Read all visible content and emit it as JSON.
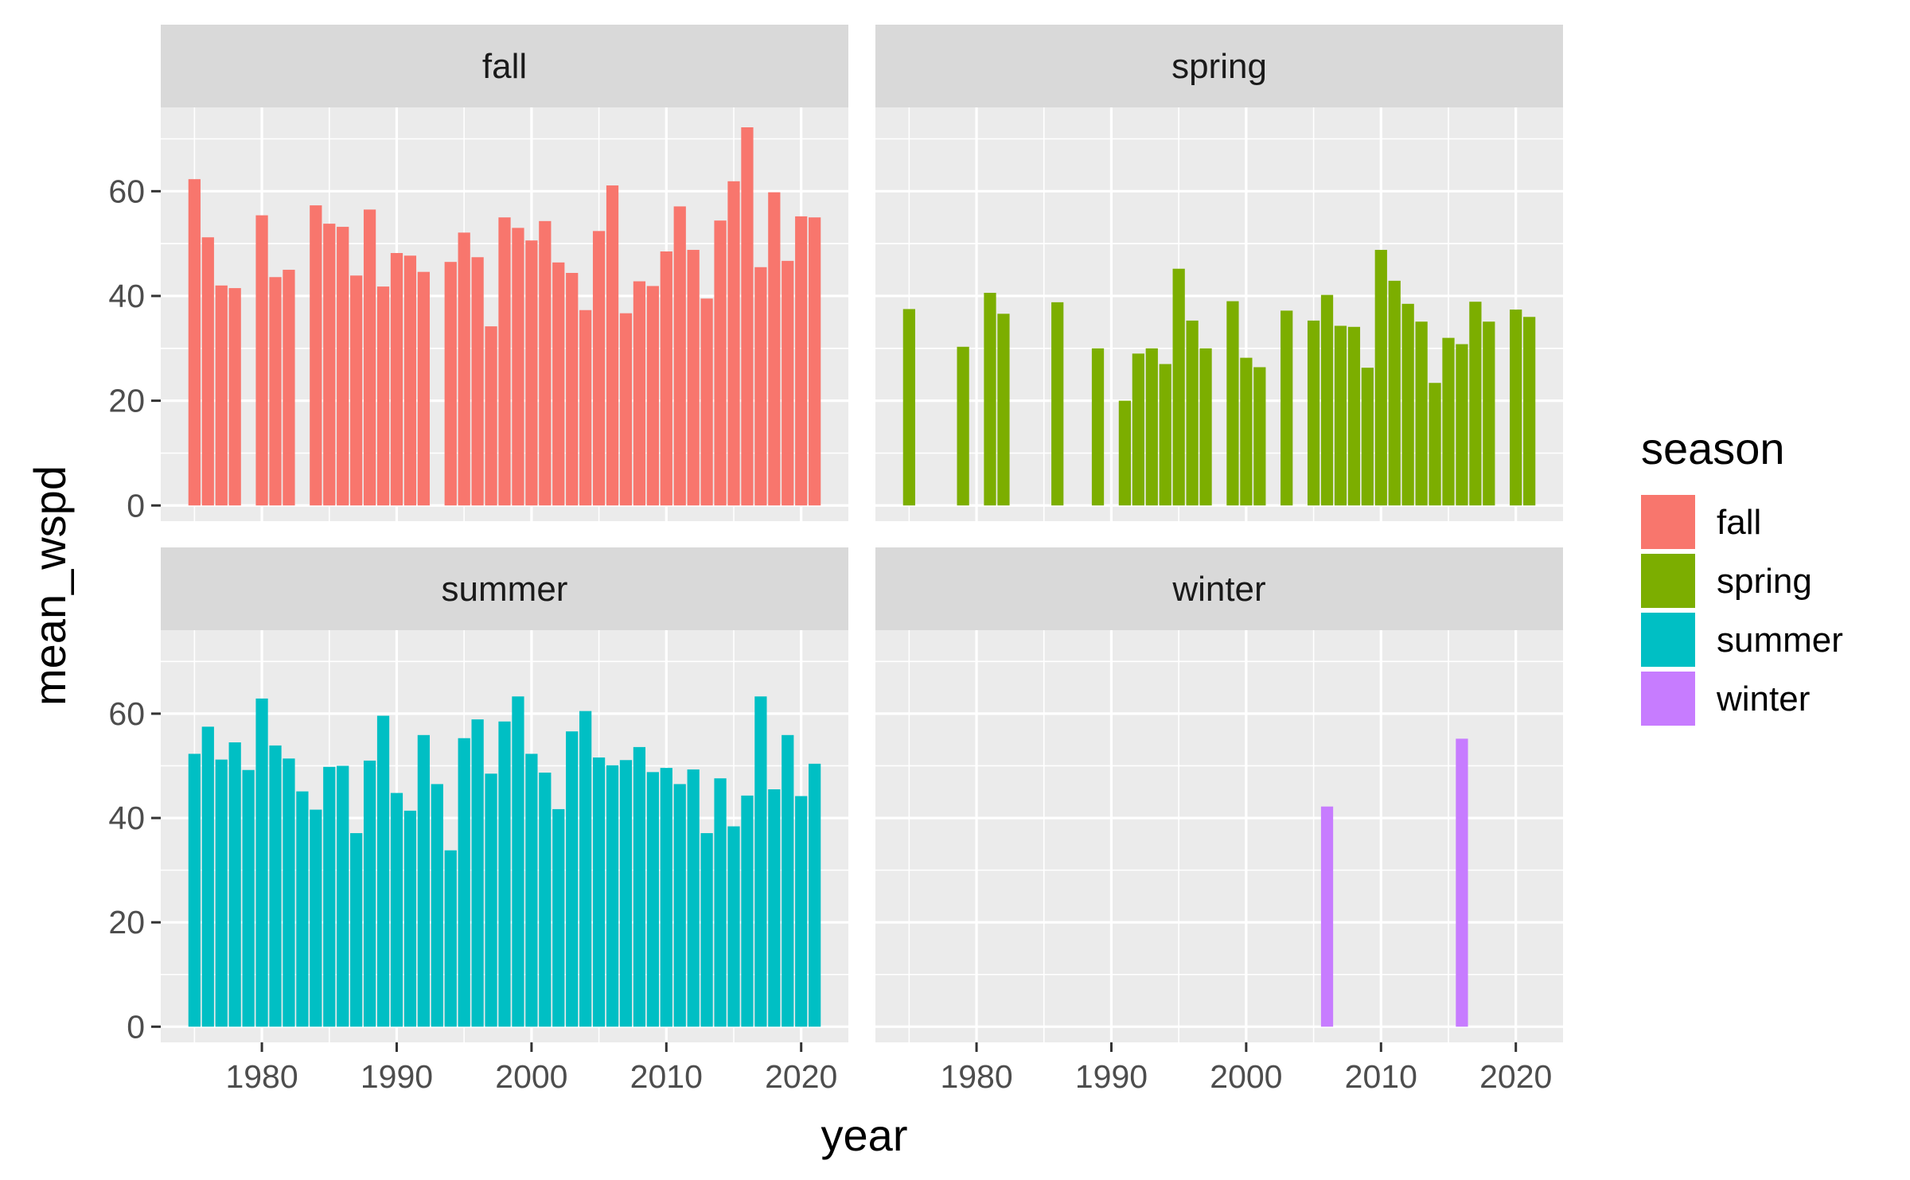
{
  "chart_data": {
    "type": "bar",
    "facet_by": "season",
    "xlabel": "year",
    "ylabel": "mean_wspd",
    "xlim": [
      1972.5,
      1998.5
    ],
    "ylim": [
      -3,
      76
    ],
    "x_ticks": [
      1980,
      1990,
      2000,
      2010,
      2020
    ],
    "y_ticks": [
      0,
      20,
      40,
      60
    ],
    "grid": true,
    "legend": {
      "title": "season",
      "position": "right",
      "entries": [
        {
          "label": "fall",
          "color": "#F8766D"
        },
        {
          "label": "spring",
          "color": "#7CAE00"
        },
        {
          "label": "summer",
          "color": "#00BFC4"
        },
        {
          "label": "winter",
          "color": "#C77CFF"
        }
      ]
    },
    "panels": [
      {
        "label": "fall",
        "color": "#F8766D",
        "points": [
          {
            "year": 1975,
            "value": 62.3
          },
          {
            "year": 1976,
            "value": 51.2
          },
          {
            "year": 1977,
            "value": 42.0
          },
          {
            "year": 1978,
            "value": 41.5
          },
          {
            "year": 1980,
            "value": 55.4
          },
          {
            "year": 1981,
            "value": 43.6
          },
          {
            "year": 1982,
            "value": 45.0
          },
          {
            "year": 1984,
            "value": 57.3
          },
          {
            "year": 1985,
            "value": 53.8
          },
          {
            "year": 1986,
            "value": 53.2
          },
          {
            "year": 1987,
            "value": 43.9
          },
          {
            "year": 1988,
            "value": 56.5
          },
          {
            "year": 1989,
            "value": 41.8
          },
          {
            "year": 1990,
            "value": 48.2
          },
          {
            "year": 1991,
            "value": 47.7
          },
          {
            "year": 1992,
            "value": 44.6
          },
          {
            "year": 1994,
            "value": 46.5
          },
          {
            "year": 1995,
            "value": 52.1
          },
          {
            "year": 1996,
            "value": 47.4
          },
          {
            "year": 1997,
            "value": 34.2
          },
          {
            "year": 1998,
            "value": 55.0
          },
          {
            "year": 1999,
            "value": 53.0
          },
          {
            "year": 2000,
            "value": 50.6
          },
          {
            "year": 2001,
            "value": 54.3
          },
          {
            "year": 2002,
            "value": 46.4
          },
          {
            "year": 2003,
            "value": 44.4
          },
          {
            "year": 2004,
            "value": 37.3
          },
          {
            "year": 2005,
            "value": 52.4
          },
          {
            "year": 2006,
            "value": 61.1
          },
          {
            "year": 2007,
            "value": 36.7
          },
          {
            "year": 2008,
            "value": 42.8
          },
          {
            "year": 2009,
            "value": 41.9
          },
          {
            "year": 2010,
            "value": 48.5
          },
          {
            "year": 2011,
            "value": 57.1
          },
          {
            "year": 2012,
            "value": 48.8
          },
          {
            "year": 2013,
            "value": 39.5
          },
          {
            "year": 2014,
            "value": 54.4
          },
          {
            "year": 2015,
            "value": 61.9
          },
          {
            "year": 2016,
            "value": 72.2
          },
          {
            "year": 2017,
            "value": 45.5
          },
          {
            "year": 2018,
            "value": 59.8
          },
          {
            "year": 2019,
            "value": 46.7
          },
          {
            "year": 2020,
            "value": 55.2
          },
          {
            "year": 2021,
            "value": 55.0
          }
        ]
      },
      {
        "label": "spring",
        "color": "#7CAE00",
        "points": [
          {
            "year": 1975,
            "value": 37.5
          },
          {
            "year": 1979,
            "value": 30.3
          },
          {
            "year": 1981,
            "value": 40.6
          },
          {
            "year": 1982,
            "value": 36.6
          },
          {
            "year": 1986,
            "value": 38.8
          },
          {
            "year": 1989,
            "value": 30.0
          },
          {
            "year": 1991,
            "value": 20.0
          },
          {
            "year": 1992,
            "value": 29.0
          },
          {
            "year": 1993,
            "value": 30.0
          },
          {
            "year": 1994,
            "value": 27.0
          },
          {
            "year": 1995,
            "value": 45.2
          },
          {
            "year": 1996,
            "value": 35.3
          },
          {
            "year": 1997,
            "value": 30.0
          },
          {
            "year": 1999,
            "value": 39.0
          },
          {
            "year": 2000,
            "value": 28.2
          },
          {
            "year": 2001,
            "value": 26.4
          },
          {
            "year": 2003,
            "value": 37.2
          },
          {
            "year": 2005,
            "value": 35.3
          },
          {
            "year": 2006,
            "value": 40.2
          },
          {
            "year": 2007,
            "value": 34.3
          },
          {
            "year": 2008,
            "value": 34.1
          },
          {
            "year": 2009,
            "value": 26.3
          },
          {
            "year": 2010,
            "value": 48.8
          },
          {
            "year": 2011,
            "value": 42.9
          },
          {
            "year": 2012,
            "value": 38.5
          },
          {
            "year": 2013,
            "value": 35.1
          },
          {
            "year": 2014,
            "value": 23.4
          },
          {
            "year": 2015,
            "value": 32.0
          },
          {
            "year": 2016,
            "value": 30.8
          },
          {
            "year": 2017,
            "value": 38.9
          },
          {
            "year": 2018,
            "value": 35.1
          },
          {
            "year": 2020,
            "value": 37.4
          },
          {
            "year": 2021,
            "value": 36.0
          }
        ]
      },
      {
        "label": "summer",
        "color": "#00BFC4",
        "points": [
          {
            "year": 1975,
            "value": 52.3
          },
          {
            "year": 1976,
            "value": 57.5
          },
          {
            "year": 1977,
            "value": 51.2
          },
          {
            "year": 1978,
            "value": 54.5
          },
          {
            "year": 1979,
            "value": 49.2
          },
          {
            "year": 1980,
            "value": 62.9
          },
          {
            "year": 1981,
            "value": 53.9
          },
          {
            "year": 1982,
            "value": 51.4
          },
          {
            "year": 1983,
            "value": 45.1
          },
          {
            "year": 1984,
            "value": 41.6
          },
          {
            "year": 1985,
            "value": 49.8
          },
          {
            "year": 1986,
            "value": 50.0
          },
          {
            "year": 1987,
            "value": 37.1
          },
          {
            "year": 1988,
            "value": 51.0
          },
          {
            "year": 1989,
            "value": 59.6
          },
          {
            "year": 1990,
            "value": 44.8
          },
          {
            "year": 1991,
            "value": 41.4
          },
          {
            "year": 1992,
            "value": 55.9
          },
          {
            "year": 1993,
            "value": 46.5
          },
          {
            "year": 1994,
            "value": 33.8
          },
          {
            "year": 1995,
            "value": 55.3
          },
          {
            "year": 1996,
            "value": 58.9
          },
          {
            "year": 1997,
            "value": 48.5
          },
          {
            "year": 1998,
            "value": 58.5
          },
          {
            "year": 1999,
            "value": 63.3
          },
          {
            "year": 2000,
            "value": 52.3
          },
          {
            "year": 2001,
            "value": 48.7
          },
          {
            "year": 2002,
            "value": 41.7
          },
          {
            "year": 2003,
            "value": 56.6
          },
          {
            "year": 2004,
            "value": 60.5
          },
          {
            "year": 2005,
            "value": 51.6
          },
          {
            "year": 2006,
            "value": 50.1
          },
          {
            "year": 2007,
            "value": 51.1
          },
          {
            "year": 2008,
            "value": 53.6
          },
          {
            "year": 2009,
            "value": 48.8
          },
          {
            "year": 2010,
            "value": 49.6
          },
          {
            "year": 2011,
            "value": 46.5
          },
          {
            "year": 2012,
            "value": 49.3
          },
          {
            "year": 2013,
            "value": 37.1
          },
          {
            "year": 2014,
            "value": 47.6
          },
          {
            "year": 2015,
            "value": 38.4
          },
          {
            "year": 2016,
            "value": 44.3
          },
          {
            "year": 2017,
            "value": 63.3
          },
          {
            "year": 2018,
            "value": 45.5
          },
          {
            "year": 2019,
            "value": 55.9
          },
          {
            "year": 2020,
            "value": 44.2
          },
          {
            "year": 2021,
            "value": 50.4
          }
        ]
      },
      {
        "label": "winter",
        "color": "#C77CFF",
        "points": [
          {
            "year": 2006,
            "value": 42.2
          },
          {
            "year": 2016,
            "value": 55.2
          }
        ]
      }
    ]
  }
}
